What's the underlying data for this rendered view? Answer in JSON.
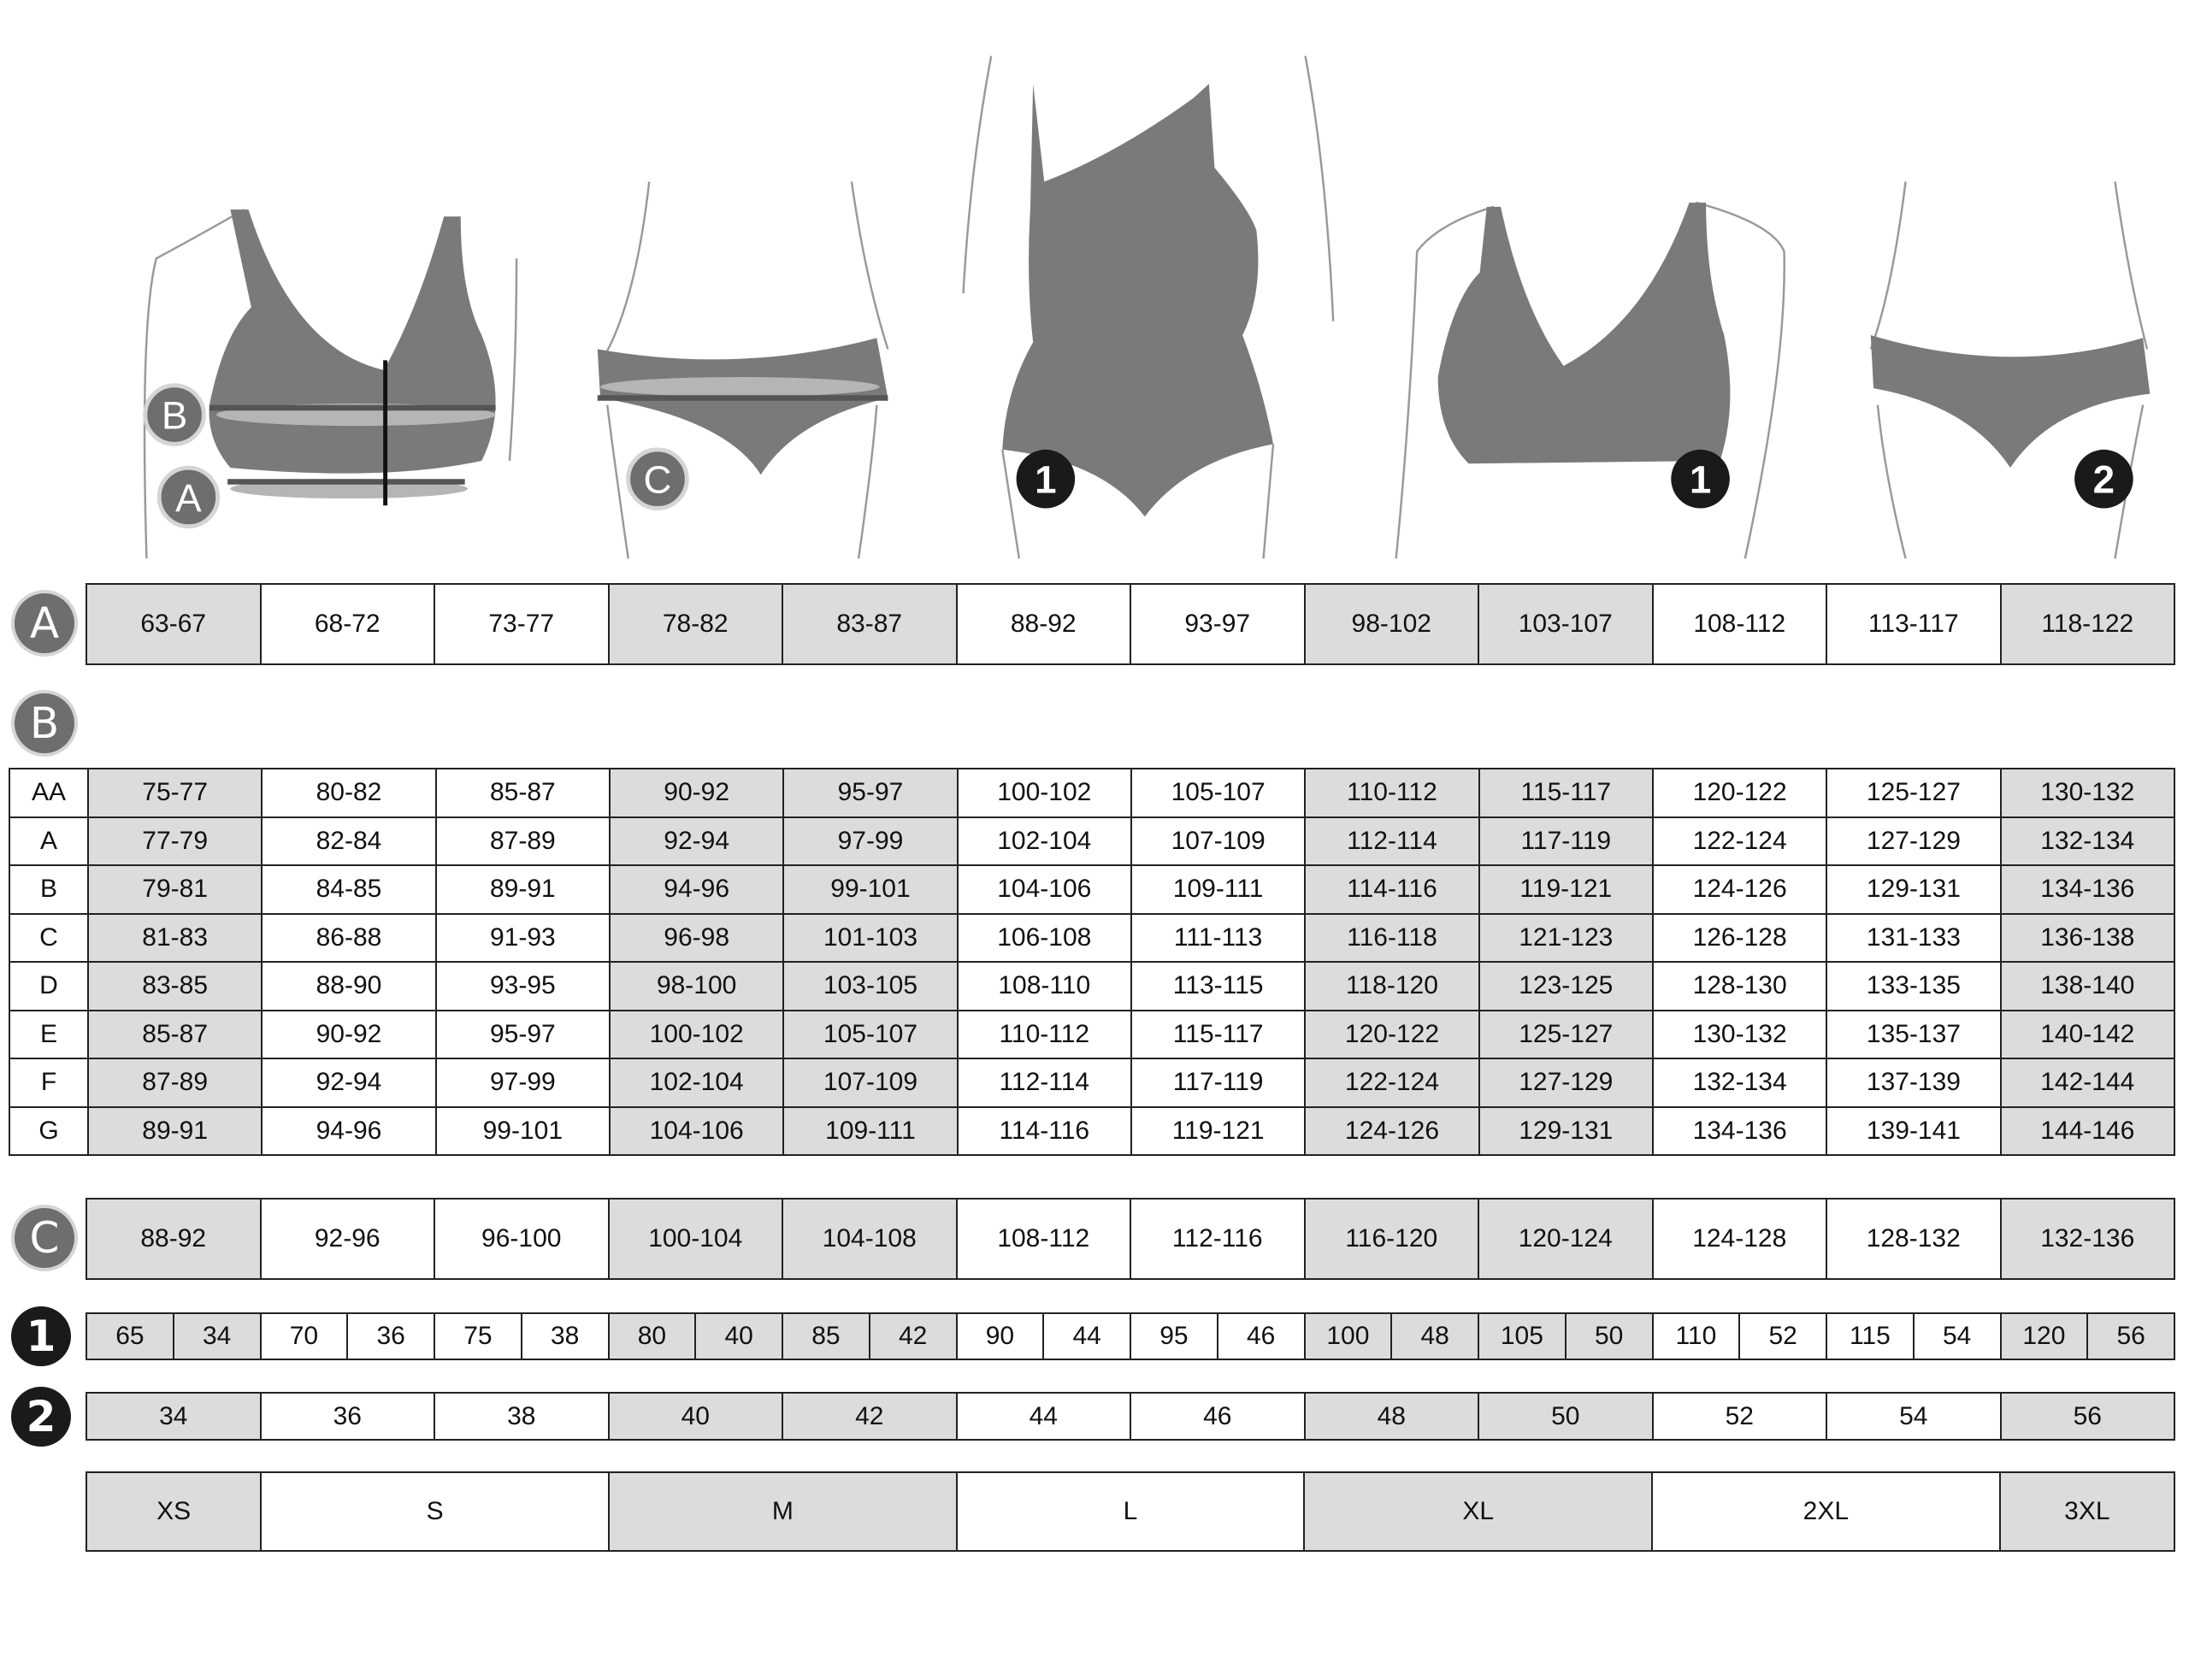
{
  "badges": {
    "A": "A",
    "B": "B",
    "C": "C",
    "one": "1",
    "two": "2"
  },
  "colors": {
    "shaded": "#dcdcdc",
    "garment": "#7a7a7a",
    "badge_gray": "#6e6e6e",
    "badge_black": "#1a1a1a"
  },
  "shaded_columns": [
    0,
    3,
    4,
    7,
    8,
    11
  ],
  "row_A": [
    "63-67",
    "68-72",
    "73-77",
    "78-82",
    "83-87",
    "88-92",
    "93-97",
    "98-102",
    "103-107",
    "108-112",
    "113-117",
    "118-122"
  ],
  "table_B": [
    {
      "cup": "AA",
      "values": [
        "75-77",
        "80-82",
        "85-87",
        "90-92",
        "95-97",
        "100-102",
        "105-107",
        "110-112",
        "115-117",
        "120-122",
        "125-127",
        "130-132"
      ]
    },
    {
      "cup": "A",
      "values": [
        "77-79",
        "82-84",
        "87-89",
        "92-94",
        "97-99",
        "102-104",
        "107-109",
        "112-114",
        "117-119",
        "122-124",
        "127-129",
        "132-134"
      ]
    },
    {
      "cup": "B",
      "values": [
        "79-81",
        "84-85",
        "89-91",
        "94-96",
        "99-101",
        "104-106",
        "109-111",
        "114-116",
        "119-121",
        "124-126",
        "129-131",
        "134-136"
      ]
    },
    {
      "cup": "C",
      "values": [
        "81-83",
        "86-88",
        "91-93",
        "96-98",
        "101-103",
        "106-108",
        "111-113",
        "116-118",
        "121-123",
        "126-128",
        "131-133",
        "136-138"
      ]
    },
    {
      "cup": "D",
      "values": [
        "83-85",
        "88-90",
        "93-95",
        "98-100",
        "103-105",
        "108-110",
        "113-115",
        "118-120",
        "123-125",
        "128-130",
        "133-135",
        "138-140"
      ]
    },
    {
      "cup": "E",
      "values": [
        "85-87",
        "90-92",
        "95-97",
        "100-102",
        "105-107",
        "110-112",
        "115-117",
        "120-122",
        "125-127",
        "130-132",
        "135-137",
        "140-142"
      ]
    },
    {
      "cup": "F",
      "values": [
        "87-89",
        "92-94",
        "97-99",
        "102-104",
        "107-109",
        "112-114",
        "117-119",
        "122-124",
        "127-129",
        "132-134",
        "137-139",
        "142-144"
      ]
    },
    {
      "cup": "G",
      "values": [
        "89-91",
        "94-96",
        "99-101",
        "104-106",
        "109-111",
        "114-116",
        "119-121",
        "124-126",
        "129-131",
        "134-136",
        "139-141",
        "144-146"
      ]
    }
  ],
  "row_C": [
    "88-92",
    "92-96",
    "96-100",
    "100-104",
    "104-108",
    "108-112",
    "112-116",
    "116-120",
    "120-124",
    "124-128",
    "128-132",
    "132-136"
  ],
  "row_1": [
    [
      "65",
      "34"
    ],
    [
      "70",
      "36"
    ],
    [
      "75",
      "38"
    ],
    [
      "80",
      "40"
    ],
    [
      "85",
      "42"
    ],
    [
      "90",
      "44"
    ],
    [
      "95",
      "46"
    ],
    [
      "100",
      "48"
    ],
    [
      "105",
      "50"
    ],
    [
      "110",
      "52"
    ],
    [
      "115",
      "54"
    ],
    [
      "120",
      "56"
    ]
  ],
  "row_2": [
    "34",
    "36",
    "38",
    "40",
    "42",
    "44",
    "46",
    "48",
    "50",
    "52",
    "54",
    "56"
  ],
  "sizes": [
    {
      "label": "XS",
      "span": 1,
      "shaded": true
    },
    {
      "label": "S",
      "span": 2,
      "shaded": false
    },
    {
      "label": "M",
      "span": 2,
      "shaded": true
    },
    {
      "label": "L",
      "span": 2,
      "shaded": false
    },
    {
      "label": "XL",
      "span": 2,
      "shaded": true
    },
    {
      "label": "2XL",
      "span": 2,
      "shaded": false
    },
    {
      "label": "3XL",
      "span": 1,
      "shaded": true
    }
  ]
}
